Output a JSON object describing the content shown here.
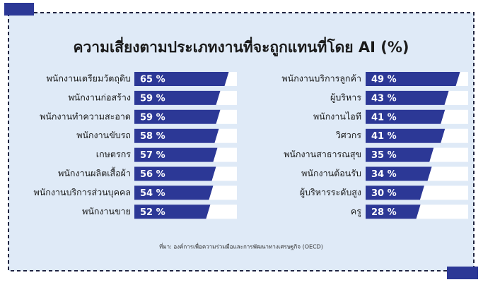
{
  "title": "ความเสี่ยงตามประเภทงานที่จะถูกแทนที่โดย AI (%)",
  "source": "ที่มา: องค์การเพื่อความร่วมมือและการพัฒนาทางเศรษฐกิจ (OECD)",
  "chart_data": [
    {
      "type": "bar",
      "orientation": "horizontal",
      "color": "#2c3896",
      "categories": [
        "พนักงานเตรียมวัตถุดิบ",
        "พนักงานก่อสร้าง",
        "พนักงานทำความสะอาด",
        "พนักงานขับรถ",
        "เกษตรกร",
        "พนักงานผลิตเสื้อผ้า",
        "พนักงานบริการส่วนบุคคล",
        "พนักงานขาย"
      ],
      "values": [
        65,
        59,
        59,
        58,
        57,
        56,
        54,
        52
      ],
      "value_labels": [
        "65 %",
        "59 %",
        "59 %",
        "58 %",
        "57 %",
        "56 %",
        "54 %",
        "52 %"
      ]
    },
    {
      "type": "bar",
      "orientation": "horizontal",
      "color": "#2c3896",
      "categories": [
        "พนักงานบริการลูกค้า",
        "ผู้บริหาร",
        "พนักงานไอที",
        "วิศวกร",
        "พนักงานสาธารณสุข",
        "พนักงานต้อนรับ",
        "ผู้บริหารระดับสูง",
        "ครู"
      ],
      "values": [
        49,
        43,
        41,
        41,
        35,
        34,
        30,
        28
      ],
      "value_labels": [
        "49 %",
        "43 %",
        "41 %",
        "41 %",
        "35 %",
        "34 %",
        "30 %",
        "28 %"
      ]
    }
  ]
}
